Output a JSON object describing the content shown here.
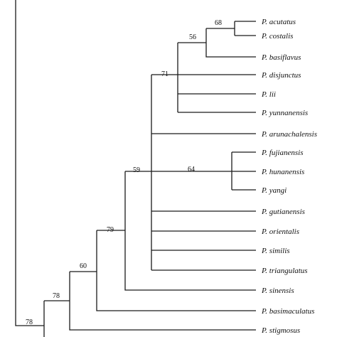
{
  "tree": {
    "top_label_fragment": "",
    "taxa": [
      "P. acutatus",
      "P. costalis",
      "P. basiflavus",
      "P. disjunctus",
      "P. lii",
      "P. yunnanensis",
      "P. arunachalensis",
      "P. fujianensis",
      "P. hunanensis",
      "P. yangi",
      "P. gutianensis",
      "P. orientalis",
      "P. similis",
      "P. triangulatus",
      "P. sinensis",
      "P. basimaculatus",
      "P. stigmosus"
    ],
    "support_values": [
      "68",
      "56",
      "71",
      "64",
      "59",
      "79",
      "60",
      "78",
      "78"
    ]
  }
}
